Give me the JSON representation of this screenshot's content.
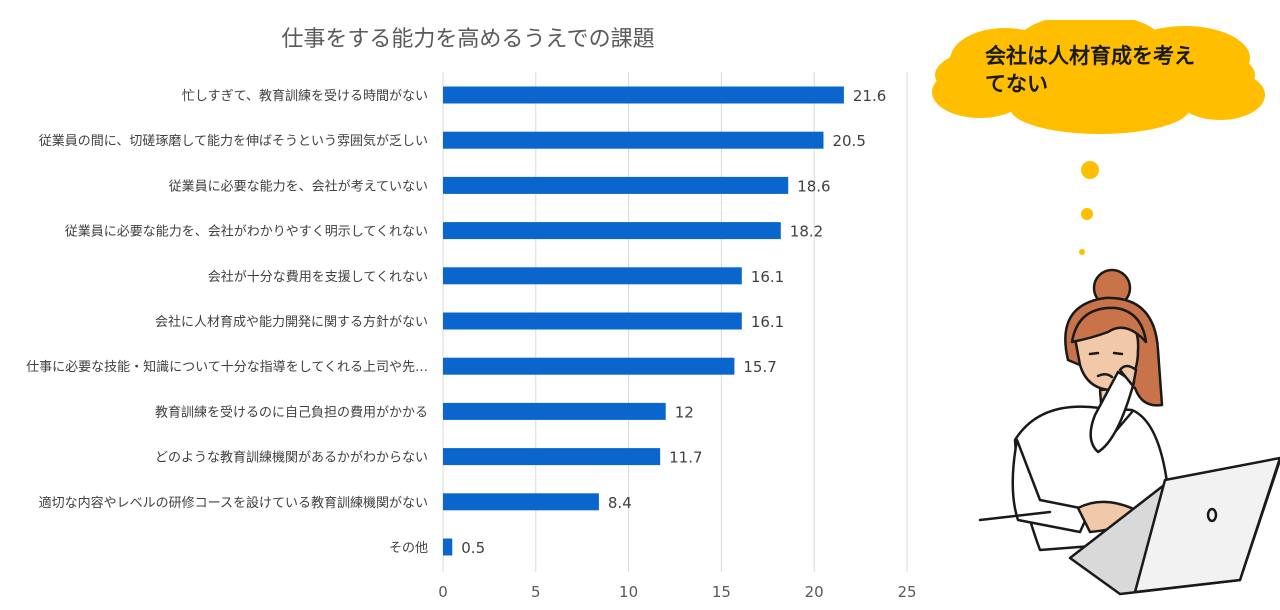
{
  "chart_data": {
    "type": "bar",
    "orientation": "horizontal",
    "title": "仕事をする能力を高めるうえでの課題",
    "categories": [
      "忙しすぎて、教育訓練を受ける時間がない",
      "従業員の間に、切磋琢磨して能力を伸ばそうという雰囲気が乏しい",
      "従業員に必要な能力を、会社が考えていない",
      "従業員に必要な能力を、会社がわかりやすく明示してくれない",
      "会社が十分な費用を支援してくれない",
      "会社に人材育成や能力開発に関する方針がない",
      "仕事に必要な技能・知識について十分な指導をしてくれる上司や先…",
      "教育訓練を受けるのに自己負担の費用がかかる",
      "どのような教育訓練機関があるかがわからない",
      "適切な内容やレベルの研修コースを設けている教育訓練機関がない",
      "その他"
    ],
    "values": [
      21.6,
      20.5,
      18.6,
      18.2,
      16.1,
      16.1,
      15.7,
      12,
      11.7,
      8.4,
      0.5
    ],
    "xlim": [
      0,
      25
    ],
    "xticks": [
      0,
      5,
      10,
      15,
      20,
      25
    ],
    "grid": true,
    "bar_color": "#0a66cc"
  },
  "illustration": {
    "thought_bubble": "会社は人材育成を考えてない",
    "bubble_color": "#ffbf00"
  }
}
